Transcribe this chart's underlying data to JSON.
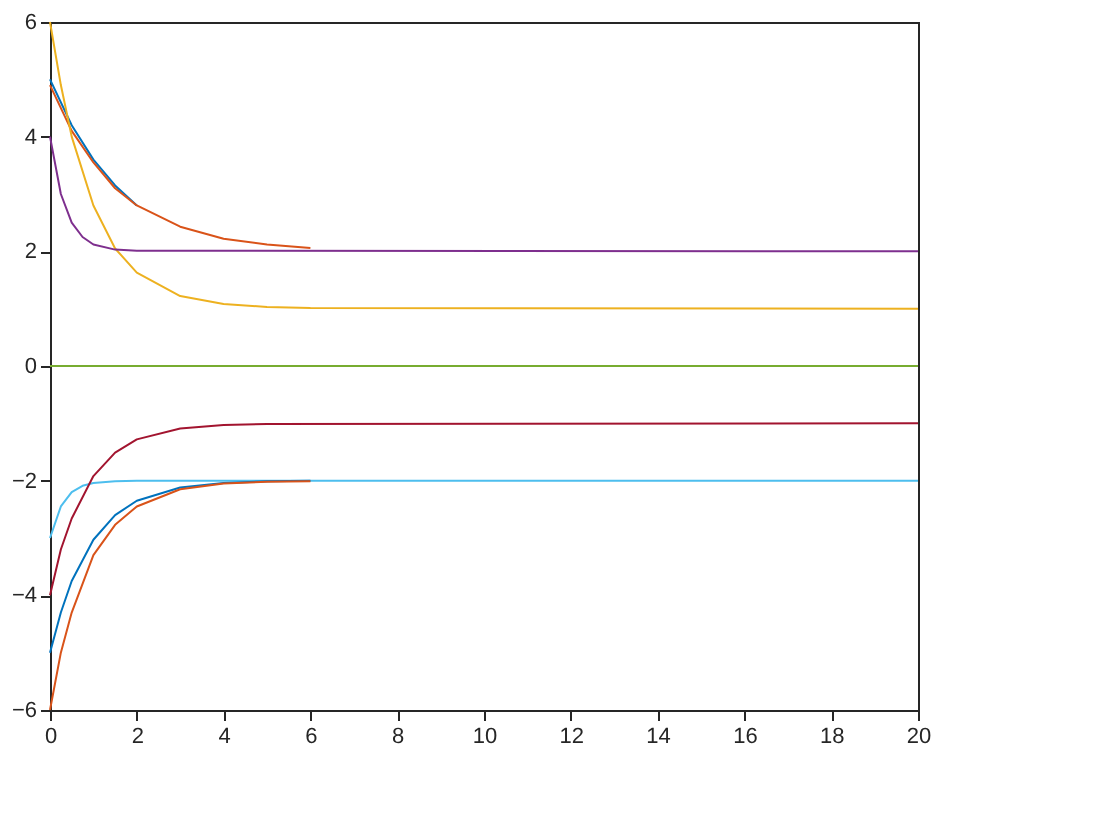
{
  "chart_data": {
    "type": "line",
    "xlim": [
      0,
      20
    ],
    "ylim": [
      -6,
      6
    ],
    "xticks": [
      0,
      2,
      4,
      6,
      8,
      10,
      12,
      14,
      16,
      18,
      20
    ],
    "yticks": [
      -6,
      -4,
      -2,
      0,
      2,
      4,
      6
    ],
    "grid": false,
    "line_style": "solid",
    "marker": "none",
    "series": [
      {
        "color": "#0072bd",
        "x": [
          0,
          0.5,
          1,
          1.5,
          2
        ],
        "values": [
          5,
          4.2,
          3.6,
          3.15,
          2.8
        ]
      },
      {
        "color": "#d95319",
        "x": [
          0,
          0.5,
          1,
          1.5,
          2,
          3,
          4,
          5,
          6
        ],
        "values": [
          4.9,
          4.1,
          3.55,
          3.1,
          2.8,
          2.43,
          2.22,
          2.12,
          2.06
        ]
      },
      {
        "color": "#edb120",
        "x": [
          0,
          0.25,
          0.5,
          1,
          1.5,
          2,
          3,
          4,
          5,
          6,
          20
        ],
        "values": [
          6,
          4.9,
          4.0,
          2.8,
          2.05,
          1.63,
          1.22,
          1.08,
          1.03,
          1.01,
          1
        ]
      },
      {
        "color": "#7e2f8e",
        "x": [
          0,
          0.25,
          0.5,
          0.75,
          1,
          1.5,
          2,
          20
        ],
        "values": [
          4,
          3.0,
          2.5,
          2.25,
          2.12,
          2.03,
          2.01,
          2
        ]
      },
      {
        "color": "#77ac30",
        "x": [
          0,
          20
        ],
        "values": [
          0,
          0
        ]
      },
      {
        "color": "#4dbeee",
        "x": [
          0,
          0.25,
          0.5,
          0.75,
          1,
          1.5,
          2,
          20
        ],
        "values": [
          -3,
          -2.45,
          -2.2,
          -2.09,
          -2.04,
          -2.01,
          -2,
          -2
        ]
      },
      {
        "color": "#a2142f",
        "x": [
          0,
          0.25,
          0.5,
          1,
          1.5,
          2,
          3,
          4,
          5,
          20
        ],
        "values": [
          -4,
          -3.2,
          -2.66,
          -1.92,
          -1.51,
          -1.28,
          -1.09,
          -1.03,
          -1.01,
          -1
        ]
      },
      {
        "color": "#0072bd",
        "x": [
          0,
          0.25,
          0.5,
          1,
          1.5,
          2,
          3,
          4,
          5,
          6
        ],
        "values": [
          -5,
          -4.3,
          -3.75,
          -3.03,
          -2.6,
          -2.35,
          -2.12,
          -2.04,
          -2.01,
          -2
        ]
      },
      {
        "color": "#d95319",
        "x": [
          0,
          0.25,
          0.5,
          1,
          1.5,
          2,
          3,
          4,
          5,
          6
        ],
        "values": [
          -6,
          -5.0,
          -4.3,
          -3.3,
          -2.77,
          -2.45,
          -2.15,
          -2.05,
          -2.02,
          -2.01
        ]
      }
    ]
  }
}
